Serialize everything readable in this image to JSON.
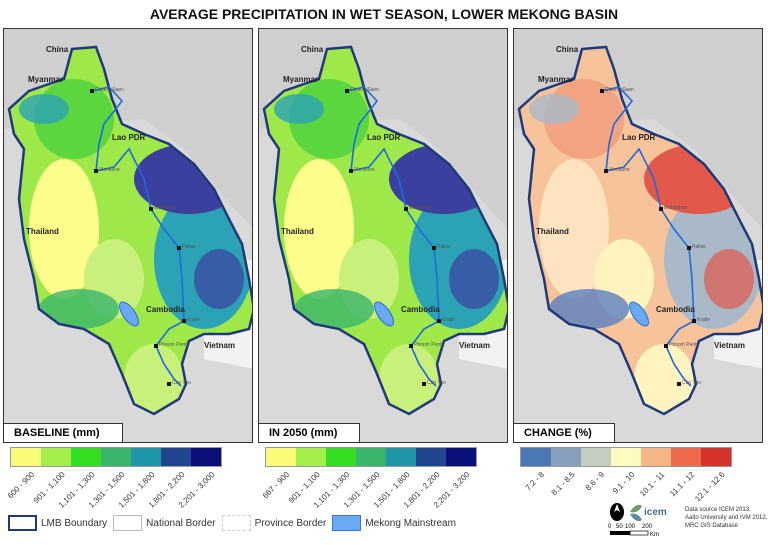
{
  "title": "AVERAGE PRECIPITATION IN WET SEASON, LOWER MEKONG BASIN",
  "panels": [
    {
      "label": "BASELINE (mm)",
      "colors": {
        "base": "#9ee84a",
        "west": "#fdfd8c",
        "ne": "#3b3f9e",
        "east": "#2ca3b5",
        "mid": "#3ecf3a",
        "south": "#c8f07a",
        "sw": "#3bb56a"
      }
    },
    {
      "label": "IN 2050 (mm)",
      "colors": {
        "base": "#9ee84a",
        "west": "#fdfd8c",
        "ne": "#3b3f9e",
        "east": "#2ca3b5",
        "mid": "#3ecf3a",
        "south": "#c8f07a",
        "sw": "#3bb56a"
      }
    },
    {
      "label": "CHANGE (%)",
      "colors": {
        "base": "#f6c39a",
        "west": "#fde3c0",
        "ne": "#e2584a",
        "east": "#a9b9c8",
        "mid": "#f09578",
        "south": "#fff4c0",
        "sw": "#5a7fbf"
      }
    }
  ],
  "countries": [
    "China",
    "Myanmar",
    "Lao PDR",
    "Thailand",
    "Cambodia",
    "Vietnam"
  ],
  "cities": [
    "Chiang Saen",
    "Vientiane",
    "Mukdahan",
    "Pakse",
    "Kratie",
    "Phnom Penh",
    "Can Tho"
  ],
  "legends": [
    {
      "colors": [
        "#fbfb7a",
        "#a3ee48",
        "#33dd22",
        "#3cb56c",
        "#1e96a8",
        "#22458f",
        "#0d0f78"
      ],
      "labels": [
        "600 - 900",
        "901 - 1,100",
        "1,101 - 1,300",
        "1,301 - 1,500",
        "1,501 - 1,800",
        "1,801 - 2,200",
        "2,201 - 3,000"
      ]
    },
    {
      "colors": [
        "#fbfb7a",
        "#a3ee48",
        "#33dd22",
        "#3cb56c",
        "#1e96a8",
        "#22458f",
        "#0d0f78"
      ],
      "labels": [
        "667 - 900",
        "901 - 1,100",
        "1,101 - 1,300",
        "1,301 - 1,500",
        "1,501 - 1,800",
        "1,801 - 2,200",
        "2,201 - 3,200"
      ]
    },
    {
      "colors": [
        "#4a79b5",
        "#889fc0",
        "#c3cec0",
        "#fdfcc0",
        "#f8b588",
        "#ef6a4c",
        "#d7312b"
      ],
      "labels": [
        "7.2 - 8",
        "8.1 - 8.5",
        "8.6 - 9",
        "9.1 - 10",
        "10.1 - 11",
        "11.1 - 12",
        "12.1 - 12.6"
      ]
    }
  ],
  "key": [
    {
      "label": "LMB Boundary",
      "fill": "#ffffff",
      "border": "#1f3a7a"
    },
    {
      "label": "National Border",
      "fill": "#ffffff",
      "border": "#bbbbbb"
    },
    {
      "label": "Province Border",
      "fill": "#ffffff",
      "border": "#cccccc"
    },
    {
      "label": "Mekong Mainstream",
      "fill": "#6aaaf5",
      "border": "#3b78d8"
    }
  ],
  "logo": {
    "name": "icem",
    "scale": [
      "0",
      "50",
      "100",
      "200"
    ],
    "unit": "Km"
  },
  "source": [
    "Data source ICEM 2013,",
    "Aalto University and IVM 2012,",
    "MRC GIS Database"
  ]
}
